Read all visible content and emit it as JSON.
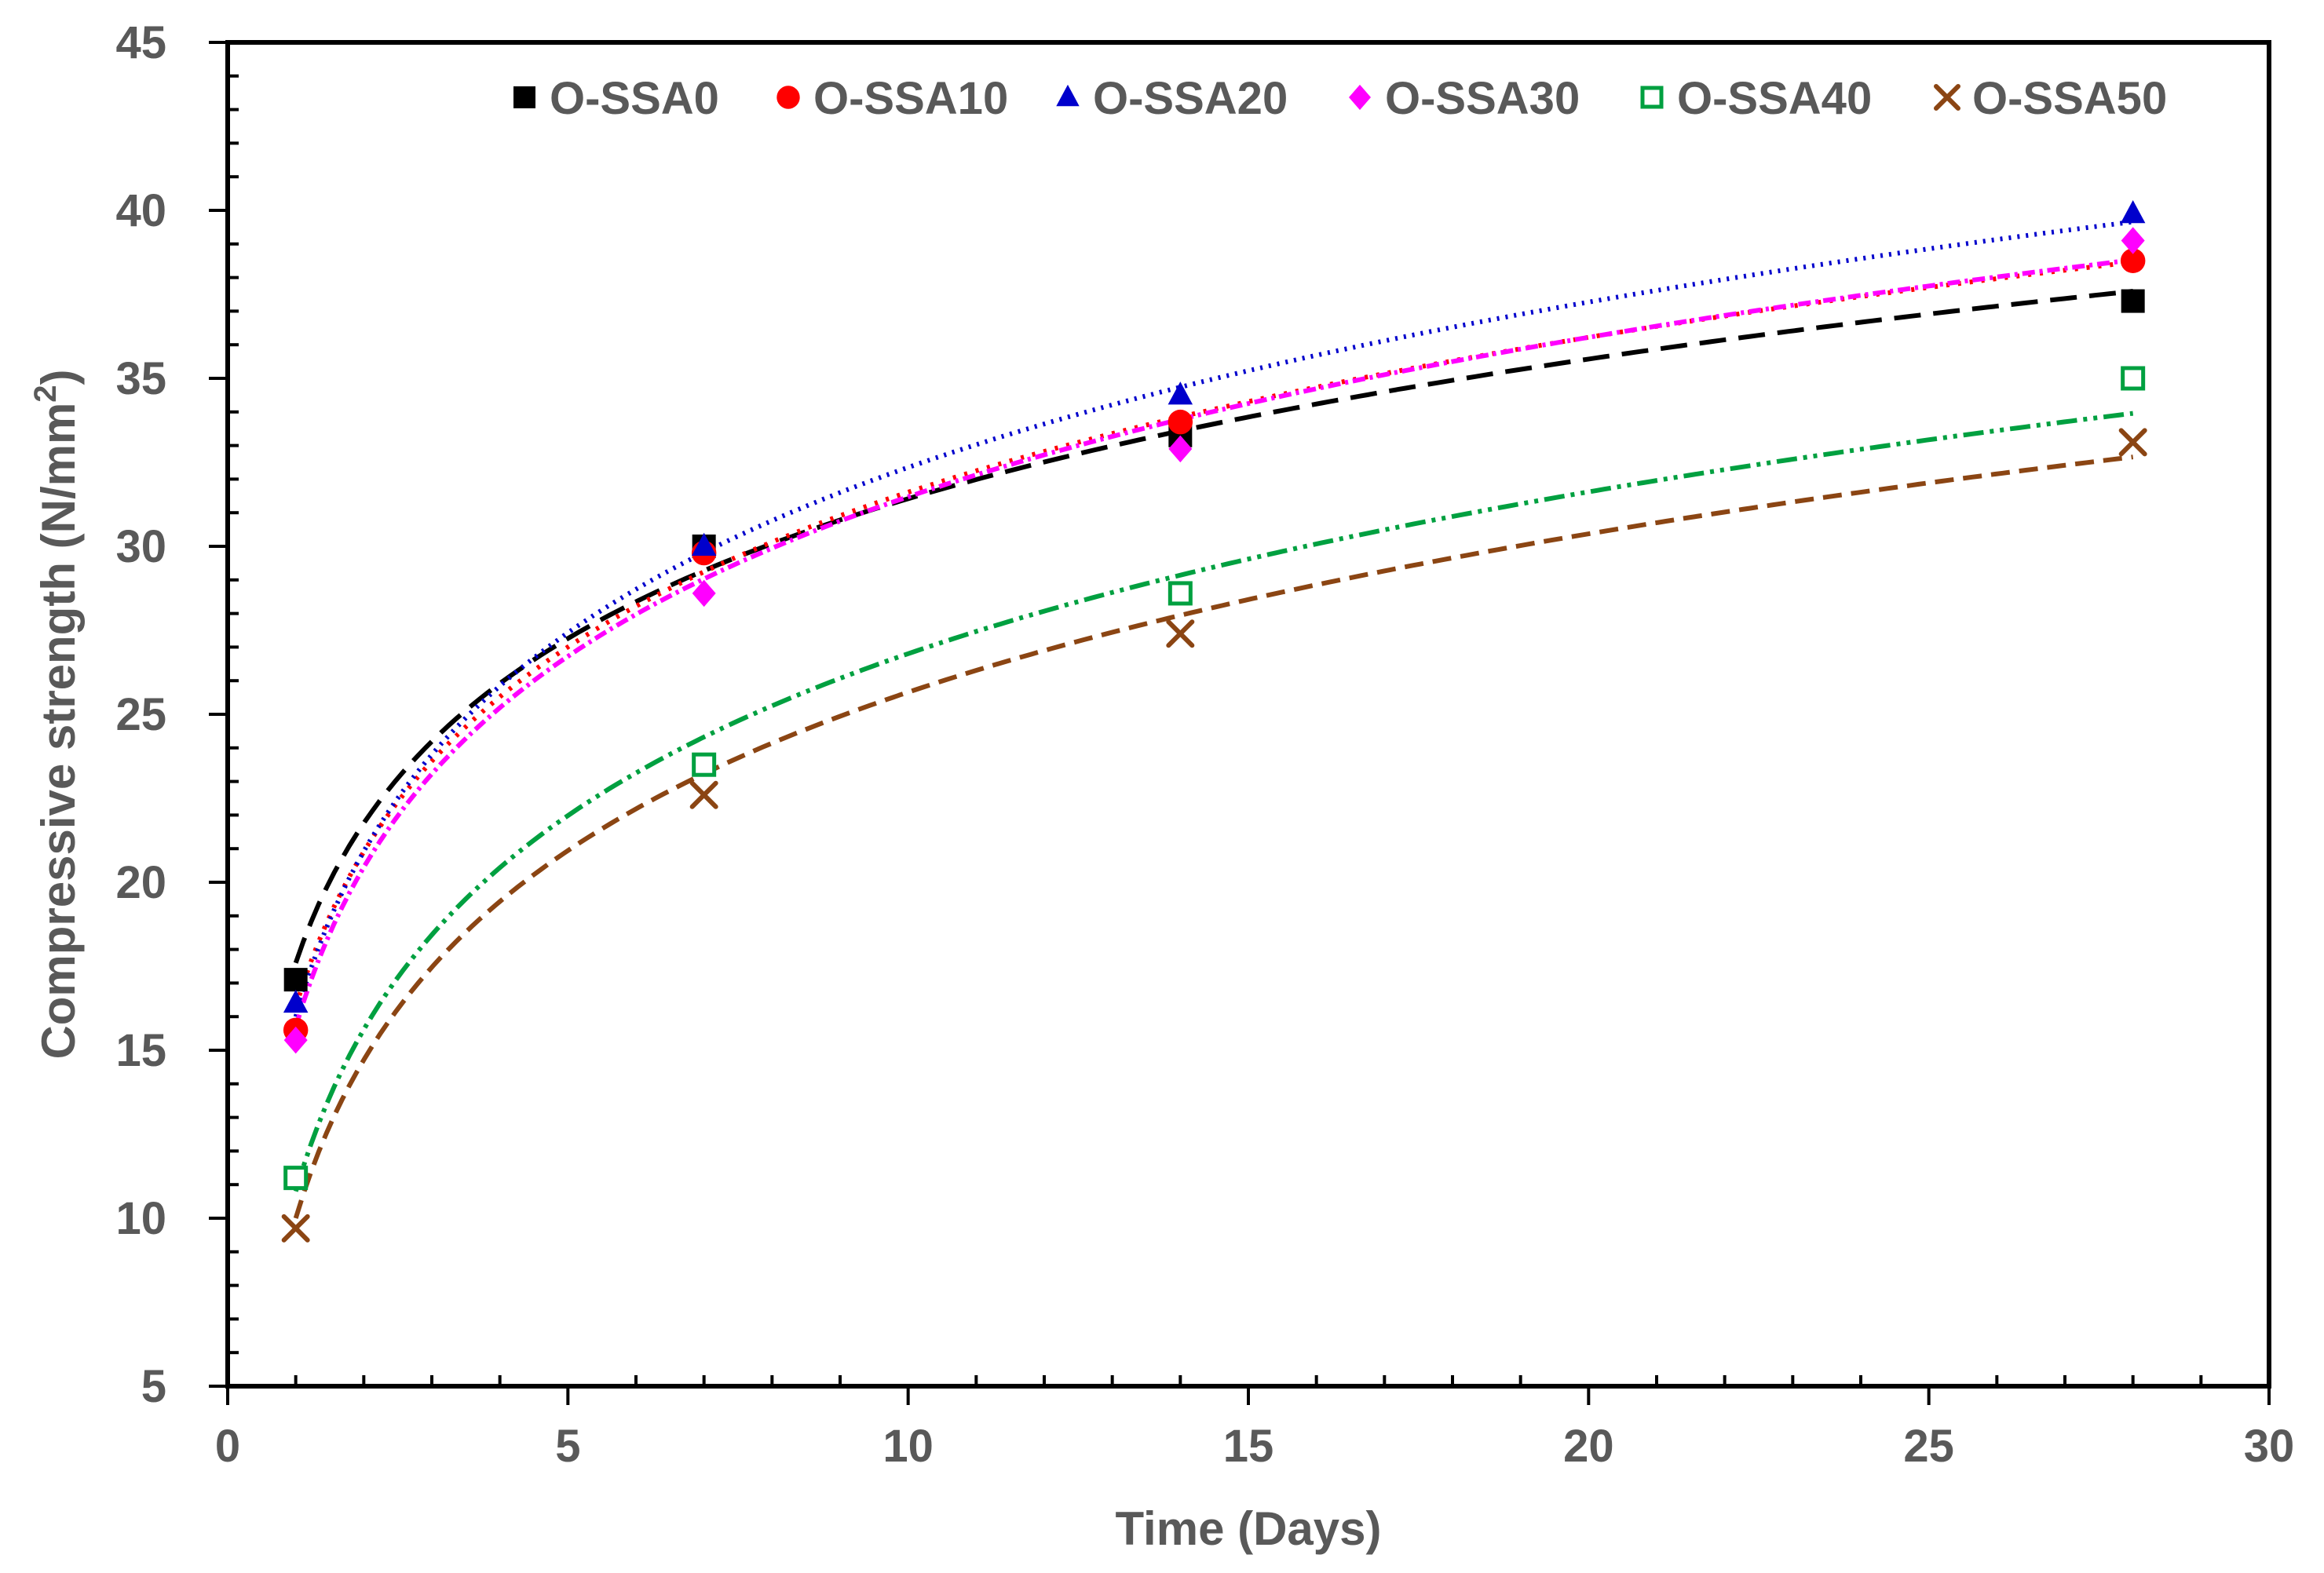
{
  "chart_data": {
    "type": "scatter",
    "title": "",
    "xlabel": "Time (Days)",
    "ylabel_main": "Compressive strength (N/mm",
    "ylabel_sup": "2",
    "ylabel_close": ")",
    "xlim": [
      0,
      30
    ],
    "ylim": [
      5,
      45
    ],
    "x_ticks": [
      "0",
      "5",
      "10",
      "15",
      "20",
      "25",
      "30"
    ],
    "y_ticks": [
      "5",
      "10",
      "15",
      "20",
      "25",
      "30",
      "35",
      "40",
      "45"
    ],
    "x_tick_values": [
      0,
      5,
      10,
      15,
      20,
      25,
      30
    ],
    "y_tick_values": [
      5,
      10,
      15,
      20,
      25,
      30,
      35,
      40,
      45
    ],
    "grid": false,
    "legend_position": "top",
    "trendline": "logarithmic",
    "series": [
      {
        "name": "O-SSA0",
        "marker": "square-filled",
        "color": "#000000",
        "x": [
          1,
          7,
          14,
          28
        ],
        "values": [
          17.1,
          30.0,
          33.3,
          37.3
        ],
        "trend": {
          "a": 17.6,
          "b": 6.0
        },
        "dash": "34 16"
      },
      {
        "name": "O-SSA10",
        "marker": "circle-filled",
        "color": "#ff0000",
        "x": [
          1,
          7,
          14,
          28
        ],
        "values": [
          15.6,
          29.8,
          33.7,
          38.5
        ],
        "trend": {
          "a": 16.3,
          "b": 6.65
        },
        "dash": "4 11"
      },
      {
        "name": "O-SSA20",
        "marker": "triangle-filled",
        "color": "#0000cc",
        "x": [
          1,
          7,
          14,
          28
        ],
        "values": [
          16.4,
          30.0,
          34.5,
          39.9
        ],
        "trend": {
          "a": 16.0,
          "b": 7.1
        },
        "dash": "3 8"
      },
      {
        "name": "O-SSA30",
        "marker": "diamond-filled",
        "color": "#ff00ff",
        "x": [
          1,
          7,
          14,
          28
        ],
        "values": [
          15.3,
          28.6,
          32.9,
          39.1
        ],
        "trend": {
          "a": 15.7,
          "b": 6.85
        },
        "dash": "16 6 4 6"
      },
      {
        "name": "O-SSA40",
        "marker": "square-open",
        "color": "#00a040",
        "x": [
          1,
          7,
          14,
          28
        ],
        "values": [
          11.2,
          23.5,
          28.6,
          35.0
        ],
        "trend": {
          "a": 10.8,
          "b": 6.95
        },
        "dash": "26 8 5 8 5 8"
      },
      {
        "name": "O-SSA50",
        "marker": "x-cross",
        "color": "#8b4513",
        "x": [
          1,
          7,
          14,
          28
        ],
        "values": [
          9.7,
          22.6,
          27.4,
          33.1
        ],
        "trend": {
          "a": 10.0,
          "b": 6.8
        },
        "dash": "24 12"
      }
    ]
  }
}
